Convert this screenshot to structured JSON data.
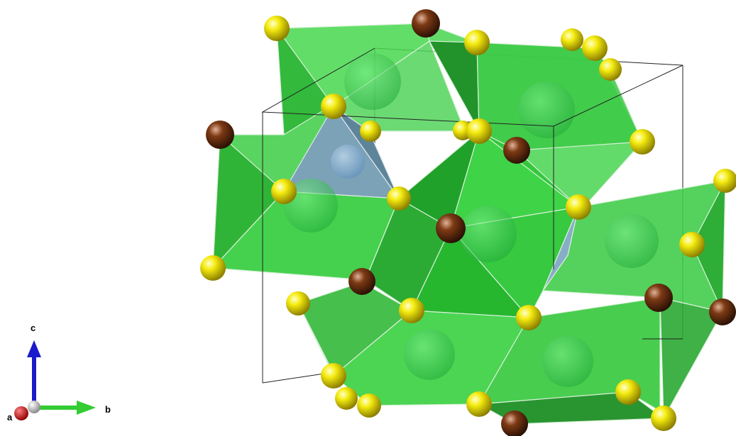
{
  "viewer": {
    "axes": {
      "a_label": "a",
      "b_label": "b",
      "c_label": "c",
      "a_color": "#cc0000",
      "b_color": "#33cc33",
      "c_color": "#1a1acc"
    }
  },
  "structure": {
    "polyhedron_colors": {
      "green": "#33cc33",
      "blue": "#7a9fbf"
    },
    "atom_colors": {
      "yellow": "#f2e600",
      "brown": "#7a3a14",
      "green_center": "#2ec44a",
      "blue_center": "#7aa6d6"
    }
  }
}
